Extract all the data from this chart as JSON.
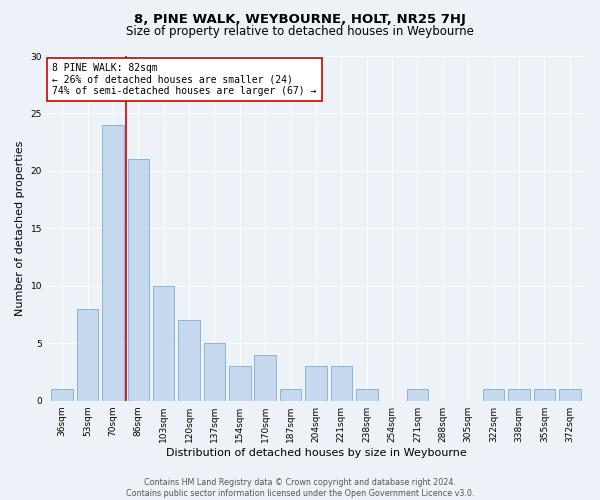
{
  "title": "8, PINE WALK, WEYBOURNE, HOLT, NR25 7HJ",
  "subtitle": "Size of property relative to detached houses in Weybourne",
  "xlabel": "Distribution of detached houses by size in Weybourne",
  "ylabel": "Number of detached properties",
  "categories": [
    "36sqm",
    "53sqm",
    "70sqm",
    "86sqm",
    "103sqm",
    "120sqm",
    "137sqm",
    "154sqm",
    "170sqm",
    "187sqm",
    "204sqm",
    "221sqm",
    "238sqm",
    "254sqm",
    "271sqm",
    "288sqm",
    "305sqm",
    "322sqm",
    "338sqm",
    "355sqm",
    "372sqm"
  ],
  "values": [
    1,
    8,
    24,
    21,
    10,
    7,
    5,
    3,
    4,
    1,
    3,
    3,
    1,
    0,
    1,
    0,
    0,
    1,
    1,
    1,
    1
  ],
  "bar_color": "#c5d8ed",
  "bar_edge_color": "#7aafd4",
  "ylim": [
    0,
    30
  ],
  "yticks": [
    0,
    5,
    10,
    15,
    20,
    25,
    30
  ],
  "vline_color": "#cc0000",
  "annotation_text": "8 PINE WALK: 82sqm\n← 26% of detached houses are smaller (24)\n74% of semi-detached houses are larger (67) →",
  "annotation_box_facecolor": "#ffffff",
  "annotation_box_edgecolor": "#cc0000",
  "footer_line1": "Contains HM Land Registry data © Crown copyright and database right 2024.",
  "footer_line2": "Contains public sector information licensed under the Open Government Licence v3.0.",
  "background_color": "#edf2f8",
  "title_fontsize": 9.5,
  "subtitle_fontsize": 8.5,
  "tick_fontsize": 6.5,
  "ylabel_fontsize": 8,
  "xlabel_fontsize": 8,
  "annotation_fontsize": 7,
  "footer_fontsize": 5.8,
  "grid_color": "#ffffff"
}
